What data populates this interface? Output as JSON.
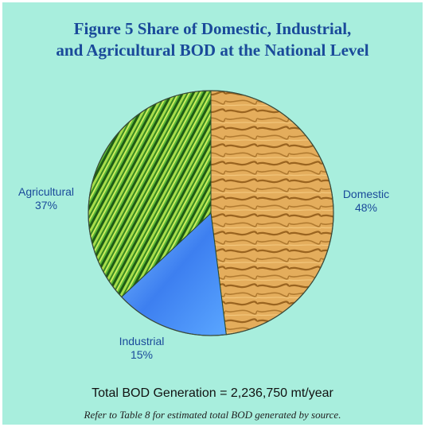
{
  "figure": {
    "title_line1": "Figure 5  Share of Domestic, Industrial,",
    "title_line2": "and Agricultural BOD at the National Level",
    "total_text": "Total BOD Generation = 2,236,750 mt/year",
    "note_text": "Refer to Table 8  for estimated total BOD generated by source."
  },
  "chart_data": {
    "type": "pie",
    "title": "Figure 5  Share of Domestic, Industrial, and Agricultural BOD at the National Level",
    "slices": [
      {
        "label": "Domestic",
        "value": 48,
        "value_label": "48%",
        "color": "#e0a650"
      },
      {
        "label": "Industrial",
        "value": 15,
        "value_label": "15%",
        "color": "#3f8cf0"
      },
      {
        "label": "Agricultural",
        "value": 37,
        "value_label": "37%",
        "color": "#3d9b2c"
      }
    ],
    "start_angle_deg": 0,
    "direction": "clockwise",
    "total": "2,236,750 mt/year"
  }
}
